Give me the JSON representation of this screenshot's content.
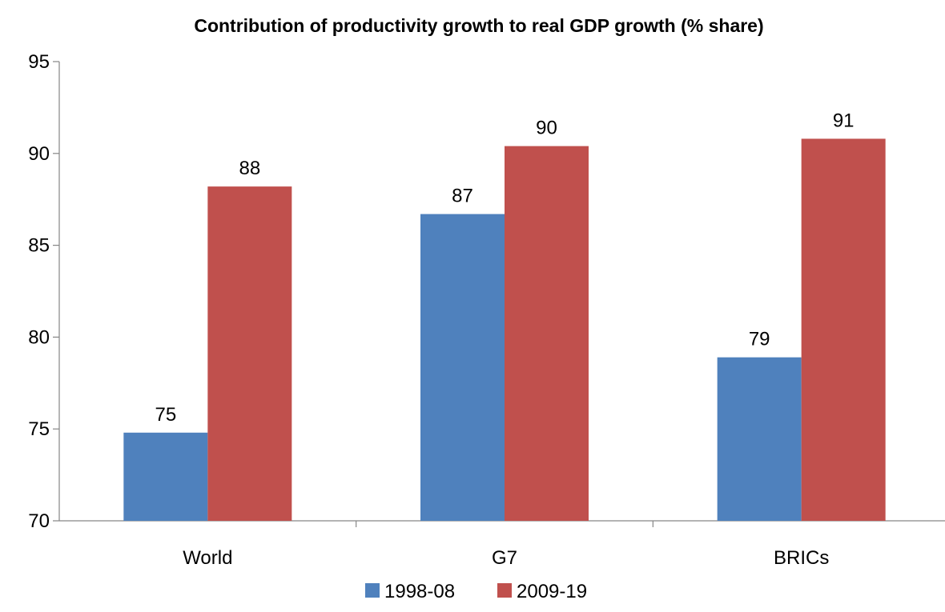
{
  "chart_data": {
    "type": "bar",
    "title": "Contribution of productivity growth to real GDP growth (% share)",
    "xlabel": "",
    "ylabel": "",
    "categories": [
      "World",
      "G7",
      "BRICs"
    ],
    "series": [
      {
        "name": "1998-08",
        "values": [
          74.8,
          86.7,
          78.9
        ],
        "labels": [
          "75",
          "87",
          "79"
        ],
        "color": "#4F81BD"
      },
      {
        "name": "2009-19",
        "values": [
          88.2,
          90.4,
          90.8
        ],
        "labels": [
          "88",
          "90",
          "91"
        ],
        "color": "#C0504D"
      }
    ],
    "ylim": [
      70,
      95
    ],
    "yticks": [
      70,
      75,
      80,
      85,
      90,
      95
    ],
    "grid": false,
    "legend": "bottom",
    "data_labels": true
  }
}
